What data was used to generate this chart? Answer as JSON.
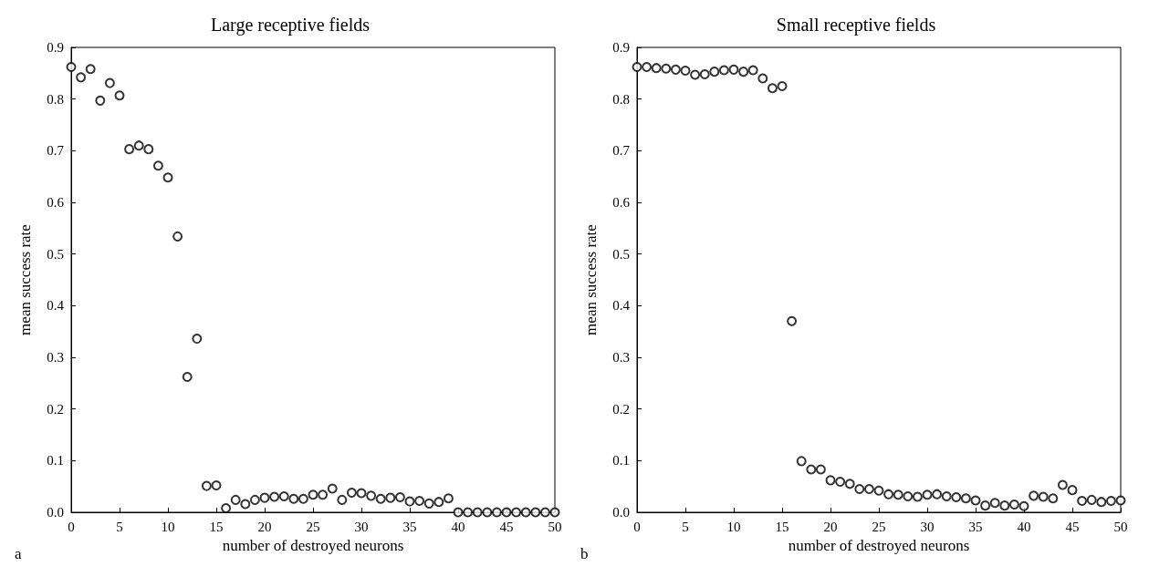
{
  "chart_data": [
    {
      "type": "scatter",
      "title": "Large receptive fields",
      "xlabel": "number of destroyed neurons",
      "ylabel": "mean success rate",
      "annotations": [
        "a"
      ],
      "marker": "circle",
      "x": [
        0,
        1,
        2,
        3,
        4,
        5,
        6,
        7,
        8,
        9,
        10,
        11,
        12,
        13,
        14,
        15,
        16,
        17,
        18,
        19,
        20,
        21,
        22,
        23,
        24,
        25,
        26,
        27,
        28,
        29,
        30,
        31,
        32,
        33,
        34,
        35,
        36,
        37,
        38,
        39,
        40,
        41,
        42,
        43,
        44,
        45,
        46,
        47,
        48,
        49,
        50
      ],
      "series": [
        {
          "color": "#000000",
          "values": [
            0.862,
            0.842,
            0.858,
            0.797,
            0.831,
            0.807,
            0.703,
            0.71,
            0.703,
            0.671,
            0.648,
            0.534,
            0.262,
            0.336,
            0.051,
            0.052,
            0.008,
            0.024,
            0.016,
            0.024,
            0.028,
            0.03,
            0.031,
            0.026,
            0.026,
            0.034,
            0.034,
            0.046,
            0.024,
            0.038,
            0.037,
            0.032,
            0.026,
            0.028,
            0.029,
            0.021,
            0.022,
            0.017,
            0.02,
            0.027,
            0,
            0,
            0,
            0,
            0,
            0,
            0,
            0,
            0,
            0,
            0
          ]
        }
      ],
      "xlim": [
        0,
        50
      ],
      "xticks": [
        0,
        5,
        10,
        15,
        20,
        25,
        30,
        35,
        40,
        45,
        50
      ],
      "ylim": [
        0,
        0.9
      ],
      "yticks": [
        {
          "value": 0,
          "label": "0.0"
        },
        0.1,
        0.2,
        0.3,
        0.4,
        0.5,
        0.6,
        0.7,
        0.8,
        0.9
      ]
    },
    {
      "type": "scatter",
      "title": "Small receptive fields",
      "xlabel": "number of destroyed neurons",
      "ylabel": "mean success rate",
      "annotations": [
        "b"
      ],
      "marker": "circle",
      "x": [
        0,
        1,
        2,
        3,
        4,
        5,
        6,
        7,
        8,
        9,
        10,
        11,
        12,
        13,
        14,
        15,
        16,
        17,
        18,
        19,
        20,
        21,
        22,
        23,
        24,
        25,
        26,
        27,
        28,
        29,
        30,
        31,
        32,
        33,
        34,
        35,
        36,
        37,
        38,
        39,
        40,
        41,
        42,
        43,
        44,
        45,
        46,
        47,
        48,
        49,
        50
      ],
      "series": [
        {
          "color": "#000000",
          "values": [
            0.862,
            0.862,
            0.86,
            0.859,
            0.857,
            0.855,
            0.847,
            0.848,
            0.853,
            0.856,
            0.857,
            0.853,
            0.856,
            0.84,
            0.821,
            0.825,
            0.37,
            0.099,
            0.083,
            0.083,
            0.062,
            0.059,
            0.055,
            0.045,
            0.045,
            0.042,
            0.035,
            0.034,
            0.031,
            0.03,
            0.034,
            0.035,
            0.031,
            0.029,
            0.027,
            0.023,
            0.013,
            0.018,
            0.013,
            0.015,
            0.012,
            0.032,
            0.03,
            0.027,
            0.053,
            0.043,
            0.022,
            0.024,
            0.02,
            0.022,
            0.023
          ]
        }
      ],
      "xlim": [
        0,
        50
      ],
      "xticks": [
        0,
        5,
        10,
        15,
        20,
        25,
        30,
        35,
        40,
        45,
        50
      ],
      "ylim": [
        0,
        0.9
      ],
      "yticks": [
        {
          "value": 0,
          "label": "0.0"
        },
        0.1,
        0.2,
        0.3,
        0.4,
        0.5,
        0.6,
        0.7,
        0.8,
        0.9
      ]
    }
  ]
}
